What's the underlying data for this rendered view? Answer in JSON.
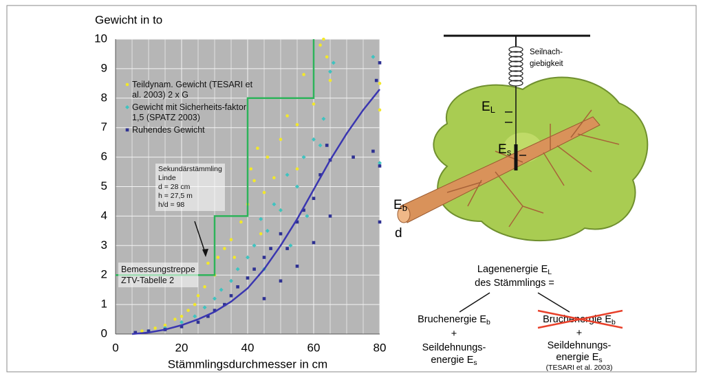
{
  "chart_data": {
    "type": "scatter",
    "title": "Gewicht in to",
    "x_label": "Stämmlingsdurchmesser in cm",
    "xlim": [
      0,
      80
    ],
    "ylim": [
      0,
      10
    ],
    "xticks": [
      0,
      20,
      40,
      60,
      80
    ],
    "yticks": [
      0,
      1,
      2,
      3,
      4,
      5,
      6,
      7,
      8,
      9,
      10
    ],
    "x_gridlines": [
      5,
      10,
      15,
      25,
      30,
      35,
      45,
      50,
      55,
      65,
      70,
      75
    ],
    "grid": true,
    "legend": "upper left",
    "plot_background": "#b6b6b6",
    "series": [
      {
        "name": "Teildynam. Gewicht (TESARI et al. 2003) 2 x G",
        "color": "#f2e82a",
        "marker": "circle",
        "x": [
          8,
          12,
          15,
          18,
          20,
          22,
          24,
          25,
          27,
          28,
          30,
          31,
          33,
          35,
          36,
          38,
          40,
          41,
          42,
          43,
          45,
          46,
          48,
          50,
          52,
          55,
          57,
          60,
          62,
          63,
          64,
          65,
          80,
          80,
          44,
          50,
          55
        ],
        "values": [
          0.1,
          0.2,
          0.3,
          0.5,
          0.6,
          0.8,
          1.0,
          1.3,
          1.6,
          2.4,
          2.0,
          2.6,
          2.9,
          3.2,
          2.6,
          3.8,
          4.4,
          5.6,
          5.2,
          6.3,
          4.8,
          6.0,
          5.3,
          6.6,
          7.4,
          7.1,
          8.8,
          7.8,
          9.8,
          10,
          9.4,
          8.6,
          8.5,
          7.6,
          3.4,
          4.2,
          5.6
        ]
      },
      {
        "name": "Gewicht mit Sicherheits-faktor 1,5 (SPATZ 2003)",
        "color": "#3fc3c0",
        "marker": "diamond",
        "x": [
          10,
          15,
          20,
          24,
          27,
          30,
          32,
          35,
          37,
          40,
          42,
          44,
          46,
          48,
          50,
          52,
          55,
          57,
          60,
          62,
          63,
          65,
          66,
          78,
          80,
          45,
          53,
          58
        ],
        "values": [
          0.1,
          0.2,
          0.4,
          0.6,
          0.9,
          1.2,
          1.5,
          1.8,
          2.2,
          2.6,
          3.0,
          3.9,
          3.5,
          4.4,
          4.2,
          5.4,
          5.0,
          6.0,
          6.6,
          6.4,
          7.3,
          8.9,
          9.2,
          9.4,
          5.8,
          2.2,
          3.0,
          4.0
        ]
      },
      {
        "name": "Ruhendes Gewicht",
        "color": "#2e3192",
        "marker": "square",
        "x": [
          6,
          10,
          15,
          20,
          25,
          28,
          30,
          33,
          35,
          37,
          40,
          42,
          45,
          47,
          50,
          52,
          55,
          57,
          60,
          62,
          64,
          65,
          45,
          50,
          55,
          60,
          65,
          72,
          78,
          80,
          80,
          80,
          79
        ],
        "values": [
          0.05,
          0.1,
          0.15,
          0.25,
          0.4,
          0.6,
          0.8,
          1.0,
          1.3,
          1.6,
          1.9,
          2.2,
          2.6,
          2.9,
          3.4,
          2.9,
          3.8,
          4.2,
          4.6,
          5.4,
          6.4,
          5.9,
          1.2,
          1.8,
          2.3,
          3.1,
          4.0,
          6.0,
          6.2,
          3.8,
          5.7,
          9.2,
          8.6
        ]
      }
    ],
    "lines": [
      {
        "color": "#3a36b0",
        "x": [
          5,
          10,
          15,
          20,
          25,
          30,
          35,
          40,
          45,
          50,
          55,
          60,
          65,
          70,
          75,
          80
        ],
        "values": [
          0,
          0.05,
          0.15,
          0.3,
          0.5,
          0.75,
          1.1,
          1.55,
          2.2,
          3.0,
          3.9,
          4.9,
          5.9,
          6.8,
          7.6,
          8.3
        ]
      },
      {
        "color": "#2db35a",
        "x": [
          0,
          30,
          30,
          40,
          40,
          60,
          60
        ],
        "values": [
          2,
          2,
          4,
          4,
          8,
          8,
          10
        ]
      }
    ],
    "annotations": [
      {
        "lines": [
          "Sekundärstämmling",
          "Linde",
          "d = 28 cm",
          "h = 27,5 m",
          "h/d = 98"
        ]
      },
      {
        "lines": [
          "Bemessungstreppe",
          "ZTV-Tabelle 2"
        ]
      }
    ]
  },
  "diagram": {
    "rope_label": [
      "Seilnach-",
      "giebigkeit"
    ],
    "e_l": {
      "base": "E",
      "sub": "L"
    },
    "e_s": {
      "base": "E",
      "sub": "s"
    },
    "e_b": {
      "base": "E",
      "sub": "b"
    },
    "d": "d",
    "equation": {
      "line1": "Lagenenergie E",
      "line1_sub": "L",
      "line2": "des Stämmlings ="
    },
    "left": {
      "line1": "Bruchenergie E",
      "line1_sub": "b",
      "plus": "+",
      "line3": "Seildehnungs-",
      "line4": "energie E",
      "line4_sub": "s"
    },
    "right": {
      "line1": "Bruchenergie E",
      "line1_sub": "b",
      "plus": "+",
      "line3": "Seildehnungs-",
      "line4": "energie E",
      "line4_sub": "s",
      "source": "(TESARI et al. 2003)"
    }
  }
}
